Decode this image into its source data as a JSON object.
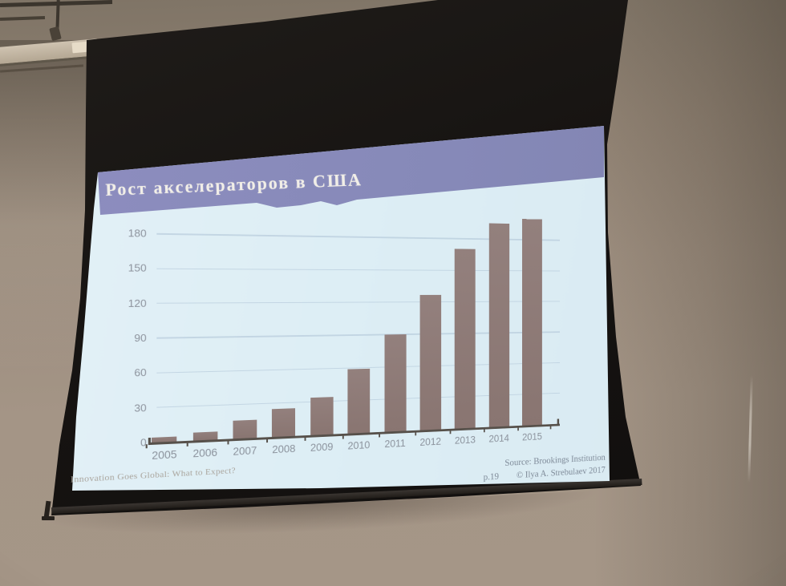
{
  "slide": {
    "title": "Рост акселераторов в США",
    "source": "Source: Brookings Institution",
    "page_number": "p.19",
    "copyright": "© Ilya A. Strebulaev 2017",
    "footer": "Innovation Goes Global: What to Expect?"
  },
  "chart_data": {
    "type": "bar",
    "title": "Рост акселераторов в США",
    "categories": [
      "2005",
      "2006",
      "2007",
      "2008",
      "2009",
      "2010",
      "2011",
      "2012",
      "2013",
      "2014",
      "2015"
    ],
    "values": [
      4,
      7,
      16,
      25,
      34,
      59,
      90,
      127,
      170,
      195,
      200
    ],
    "yticks": [
      0,
      30,
      60,
      90,
      120,
      150,
      180
    ],
    "ylim": [
      0,
      210
    ],
    "xlabel": "",
    "ylabel": "",
    "grid": true,
    "legend_position": "none",
    "bar_color": "#8d7873",
    "source": "Source: Brookings Institution"
  },
  "colors": {
    "title_band": "#8689b8",
    "slide_background": "#ddeef5",
    "bar": "#8d7873",
    "axis_text": "#8d939d",
    "source_text": "#7e8a98",
    "screen_black": "#171412",
    "wall_beige": "#9c8d7e"
  }
}
